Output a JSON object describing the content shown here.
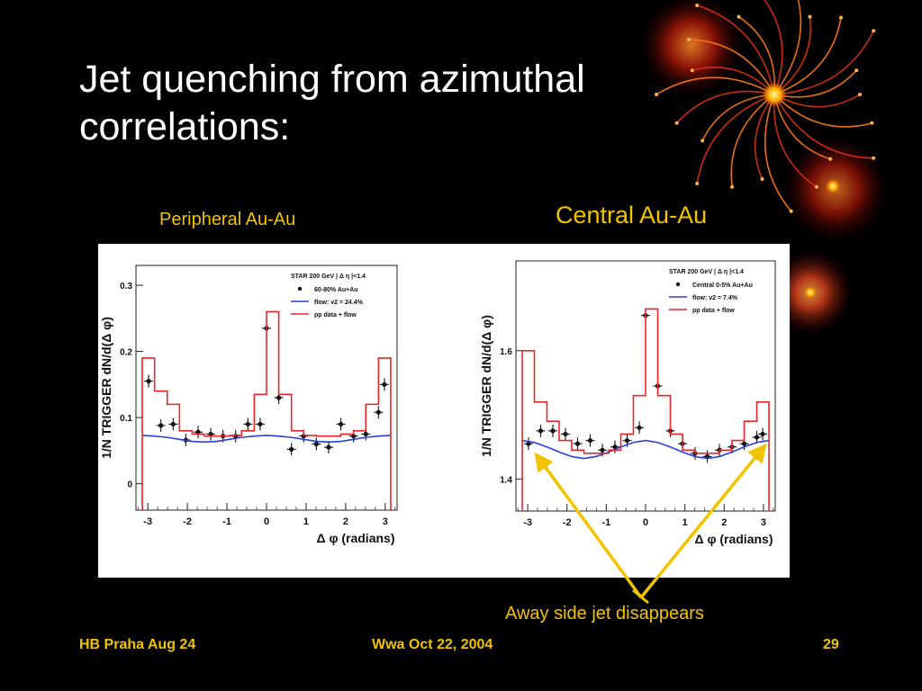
{
  "slide": {
    "title_line1": "Jet quenching from azimuthal",
    "title_line2": "correlations:",
    "label_left": "Peripheral Au-Au",
    "label_right": "Central Au-Au",
    "annotation": "Away side jet disappears",
    "footer_left": "HB Praha Aug 24",
    "footer_center": "Wwa Oct 22, 2004",
    "footer_page": "29",
    "colors": {
      "accent": "#f2c400",
      "background": "#000000",
      "data_red": "#e8262a",
      "flow_blue": "#2b3fd6"
    }
  },
  "chart_data": [
    {
      "type": "scatter",
      "title": "Peripheral Au-Au",
      "xlabel": "Δ φ (radians)",
      "ylabel": "1/N TRIGGER dN/d(Δ φ)",
      "xlim": [
        -3.3,
        3.3
      ],
      "ylim": [
        -0.04,
        0.33
      ],
      "xticks": [
        -3,
        -2,
        -1,
        0,
        1,
        2,
        3
      ],
      "yticks": [
        0,
        0.1,
        0.2,
        0.3
      ],
      "ytick_labels": [
        "0",
        "0.1",
        "0.2",
        "0.3"
      ],
      "legend_title": "STAR 200 GeV | Δ η |<1.4",
      "legend": [
        "60-80% Au+Au",
        "flow: v2 = 24.4%",
        "pp data + flow"
      ],
      "legend_placement": "top-right",
      "bins": [
        -3.14,
        -2.83,
        -2.51,
        -2.2,
        -1.88,
        -1.57,
        -1.26,
        -0.94,
        -0.63,
        -0.31,
        0,
        0.31,
        0.63,
        0.94,
        1.26,
        1.57,
        1.88,
        2.2,
        2.51,
        2.83,
        3.14
      ],
      "series": [
        {
          "name": "60-80% Au+Au",
          "kind": "points",
          "x": [
            -2.98,
            -2.67,
            -2.36,
            -2.04,
            -1.73,
            -1.41,
            -1.1,
            -0.78,
            -0.47,
            -0.16,
            0.0,
            0.31,
            0.63,
            0.94,
            1.26,
            1.57,
            1.88,
            2.2,
            2.51,
            2.83,
            2.98
          ],
          "y": [
            0.155,
            0.088,
            0.09,
            0.066,
            0.078,
            0.075,
            0.072,
            0.072,
            0.09,
            0.09,
            0.235,
            0.13,
            0.052,
            0.072,
            0.06,
            0.055,
            0.09,
            0.072,
            0.075,
            0.108,
            0.15
          ]
        },
        {
          "name": "flow: v2 = 24.4%",
          "kind": "line",
          "x": [
            -3.14,
            -2.83,
            -2.51,
            -2.2,
            -1.88,
            -1.57,
            -1.26,
            -0.94,
            -0.63,
            -0.31,
            0,
            0.31,
            0.63,
            0.94,
            1.26,
            1.57,
            1.88,
            2.2,
            2.51,
            2.83,
            3.14
          ],
          "y": [
            0.073,
            0.072,
            0.07,
            0.067,
            0.064,
            0.063,
            0.064,
            0.067,
            0.07,
            0.072,
            0.073,
            0.072,
            0.07,
            0.067,
            0.064,
            0.063,
            0.064,
            0.067,
            0.07,
            0.072,
            0.073
          ]
        },
        {
          "name": "pp data + flow",
          "kind": "histogram",
          "y": [
            0.19,
            0.14,
            0.12,
            0.08,
            0.075,
            0.072,
            0.072,
            0.073,
            0.08,
            0.135,
            0.26,
            0.135,
            0.08,
            0.073,
            0.072,
            0.072,
            0.075,
            0.08,
            0.12,
            0.19
          ]
        }
      ]
    },
    {
      "type": "scatter",
      "title": "Central Au-Au",
      "xlabel": "Δ φ (radians)",
      "ylabel": "1/N TRIGGER dN/d(Δ φ)",
      "xlim": [
        -3.3,
        3.3
      ],
      "ylim": [
        1.35,
        1.74
      ],
      "xticks": [
        -3,
        -2,
        -1,
        0,
        1,
        2,
        3
      ],
      "yticks": [
        1.4,
        1.6
      ],
      "ytick_labels": [
        "1.4",
        "1.6"
      ],
      "legend_title": "STAR 200 GeV | Δ η |<1.4",
      "legend": [
        "Central 0-5% Au+Au",
        "flow: v2 = 7.4%",
        "pp data + flow"
      ],
      "legend_placement": "top-right",
      "bins": [
        -3.14,
        -2.83,
        -2.51,
        -2.2,
        -1.88,
        -1.57,
        -1.26,
        -0.94,
        -0.63,
        -0.31,
        0,
        0.31,
        0.63,
        0.94,
        1.26,
        1.57,
        1.88,
        2.2,
        2.51,
        2.83,
        3.14
      ],
      "series": [
        {
          "name": "Central 0-5% Au+Au",
          "kind": "points",
          "x": [
            -2.98,
            -2.67,
            -2.36,
            -2.04,
            -1.73,
            -1.41,
            -1.1,
            -0.78,
            -0.47,
            -0.16,
            0.0,
            0.31,
            0.63,
            0.94,
            1.26,
            1.57,
            1.88,
            2.2,
            2.51,
            2.83,
            2.98
          ],
          "y": [
            1.455,
            1.475,
            1.475,
            1.47,
            1.455,
            1.46,
            1.445,
            1.45,
            1.46,
            1.48,
            1.655,
            1.545,
            1.475,
            1.455,
            1.44,
            1.435,
            1.445,
            1.45,
            1.455,
            1.465,
            1.47
          ]
        },
        {
          "name": "flow: v2 = 7.4%",
          "kind": "line",
          "x": [
            -3.14,
            -2.83,
            -2.51,
            -2.2,
            -1.88,
            -1.57,
            -1.26,
            -0.94,
            -0.63,
            -0.31,
            0,
            0.31,
            0.63,
            0.94,
            1.26,
            1.57,
            1.88,
            2.2,
            2.51,
            2.83,
            3.14
          ],
          "y": [
            1.46,
            1.457,
            1.45,
            1.442,
            1.435,
            1.432,
            1.435,
            1.442,
            1.45,
            1.457,
            1.46,
            1.457,
            1.45,
            1.442,
            1.435,
            1.432,
            1.435,
            1.442,
            1.45,
            1.457,
            1.46
          ]
        },
        {
          "name": "pp data + flow",
          "kind": "histogram",
          "y": [
            1.6,
            1.52,
            1.49,
            1.46,
            1.445,
            1.44,
            1.44,
            1.445,
            1.47,
            1.53,
            1.665,
            1.53,
            1.47,
            1.445,
            1.44,
            1.44,
            1.445,
            1.46,
            1.49,
            1.52
          ]
        }
      ]
    }
  ]
}
